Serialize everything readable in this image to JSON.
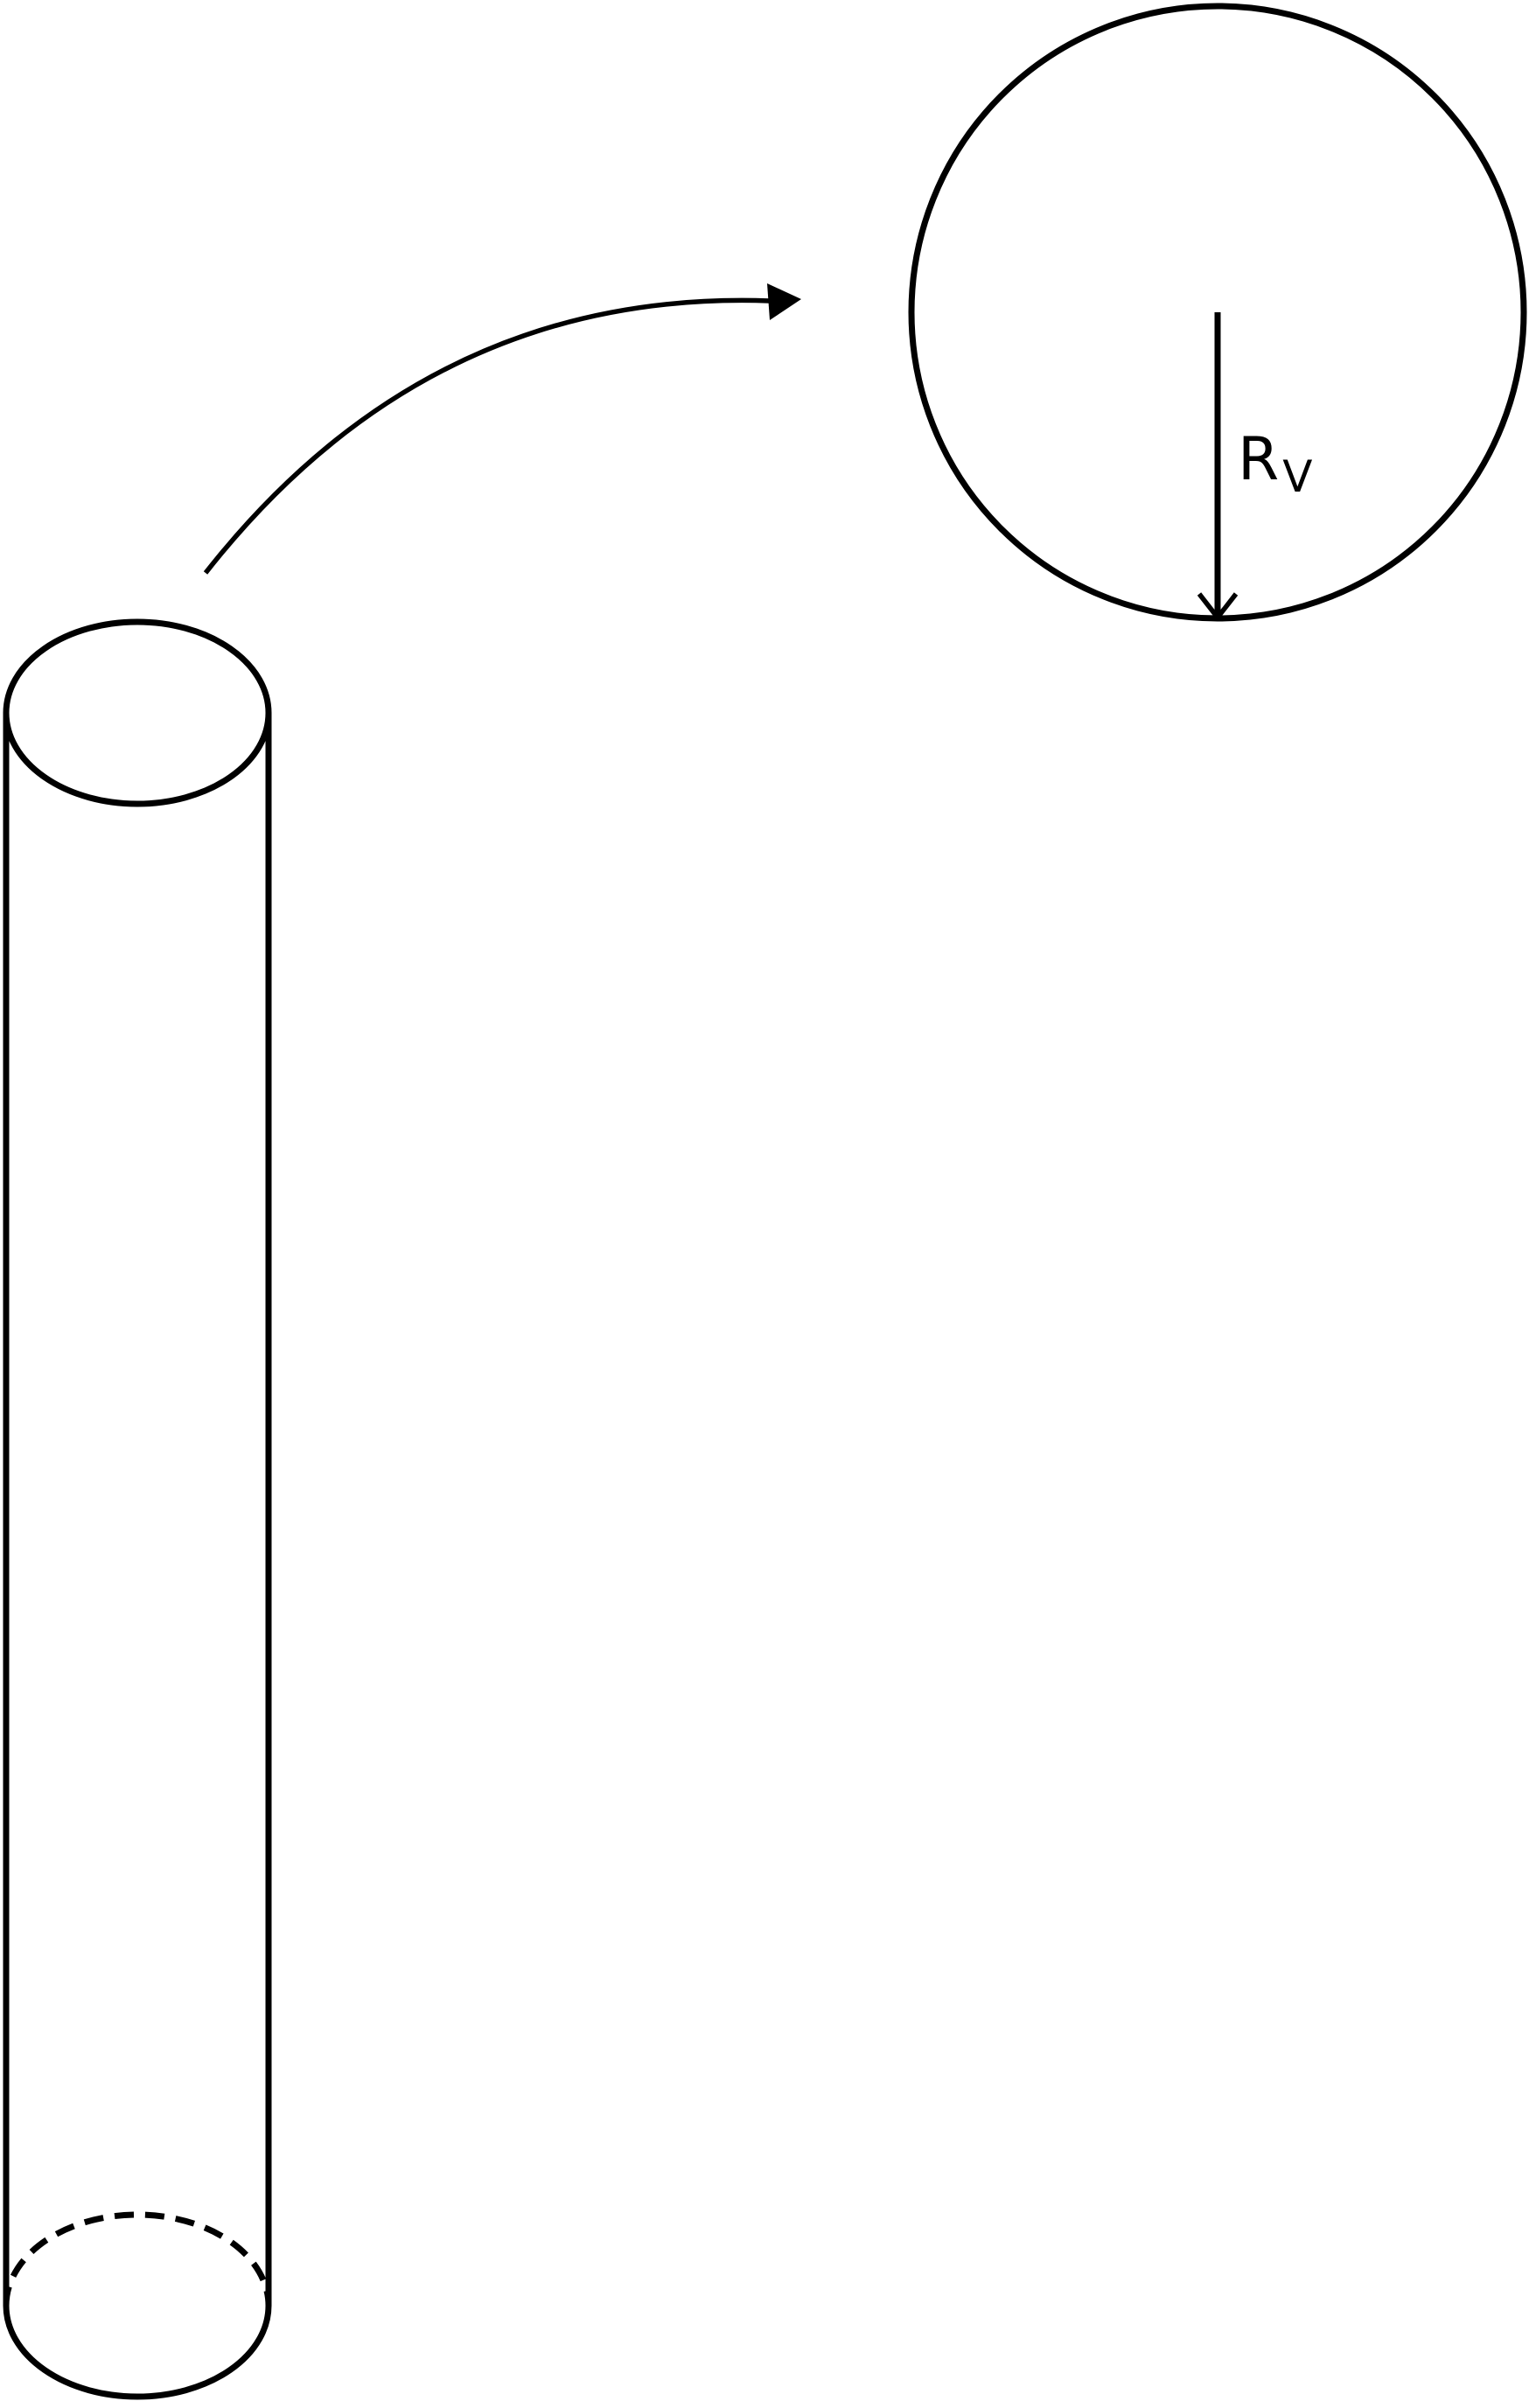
{
  "figure": {
    "radius_label": {
      "main": "R",
      "subscript": "V"
    }
  }
}
